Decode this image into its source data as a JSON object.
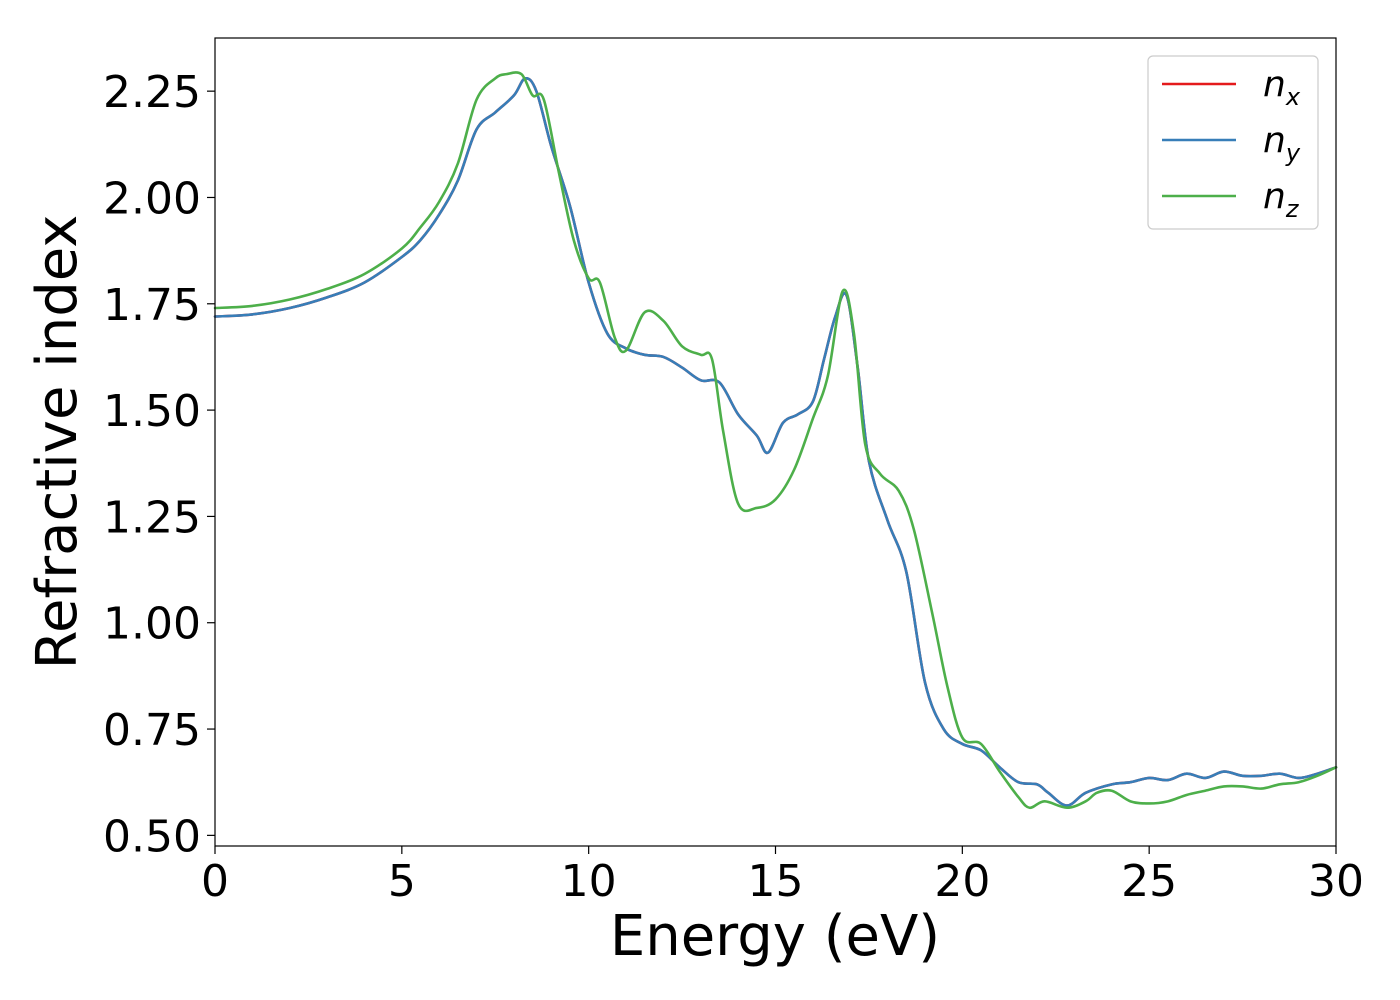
{
  "chart_data": {
    "type": "line",
    "xlabel": "Energy (eV)",
    "ylabel": "Refractive index",
    "xlim": [
      0,
      30
    ],
    "ylim": [
      0.475,
      2.375
    ],
    "xticks": [
      0,
      5,
      10,
      15,
      20,
      25,
      30
    ],
    "xtick_labels": [
      "0",
      "5",
      "10",
      "15",
      "20",
      "25",
      "30"
    ],
    "yticks": [
      0.5,
      0.75,
      1.0,
      1.25,
      1.5,
      1.75,
      2.0,
      2.25
    ],
    "ytick_labels": [
      "0.50",
      "0.75",
      "1.00",
      "1.25",
      "1.50",
      "1.75",
      "2.00",
      "2.25"
    ],
    "grid": false,
    "legend_position": "top-right",
    "series": [
      {
        "name": "n_x",
        "legend_base": "n",
        "legend_sub": "x",
        "color": "#e41a1c",
        "x": [
          0,
          1,
          2,
          3,
          4,
          5,
          5.5,
          6,
          6.5,
          7,
          7.5,
          8,
          8.3,
          8.6,
          9,
          9.5,
          10,
          10.5,
          11,
          11.5,
          12,
          12.5,
          13,
          13.5,
          14,
          14.5,
          14.8,
          15.2,
          15.6,
          16,
          16.3,
          16.6,
          16.9,
          17.2,
          17.5,
          18,
          18.5,
          19,
          19.5,
          20,
          20.5,
          21,
          21.5,
          22,
          22.3,
          22.8,
          23.3,
          24,
          24.5,
          25,
          25.5,
          26,
          26.5,
          27,
          27.5,
          28,
          28.5,
          29,
          29.5,
          30
        ],
        "y": [
          1.72,
          1.725,
          1.74,
          1.765,
          1.8,
          1.86,
          1.9,
          1.96,
          2.04,
          2.16,
          2.2,
          2.24,
          2.28,
          2.25,
          2.12,
          1.98,
          1.8,
          1.68,
          1.645,
          1.63,
          1.625,
          1.6,
          1.57,
          1.565,
          1.49,
          1.44,
          1.4,
          1.47,
          1.49,
          1.52,
          1.62,
          1.72,
          1.77,
          1.6,
          1.38,
          1.24,
          1.12,
          0.86,
          0.75,
          0.715,
          0.7,
          0.66,
          0.625,
          0.62,
          0.6,
          0.57,
          0.6,
          0.62,
          0.625,
          0.635,
          0.63,
          0.645,
          0.635,
          0.65,
          0.64,
          0.64,
          0.645,
          0.635,
          0.645,
          0.66
        ]
      },
      {
        "name": "n_y",
        "legend_base": "n",
        "legend_sub": "y",
        "color": "#377eb8",
        "x": [
          0,
          1,
          2,
          3,
          4,
          5,
          5.5,
          6,
          6.5,
          7,
          7.5,
          8,
          8.3,
          8.6,
          9,
          9.5,
          10,
          10.5,
          11,
          11.5,
          12,
          12.5,
          13,
          13.5,
          14,
          14.5,
          14.8,
          15.2,
          15.6,
          16,
          16.3,
          16.6,
          16.9,
          17.2,
          17.5,
          18,
          18.5,
          19,
          19.5,
          20,
          20.5,
          21,
          21.5,
          22,
          22.3,
          22.8,
          23.3,
          24,
          24.5,
          25,
          25.5,
          26,
          26.5,
          27,
          27.5,
          28,
          28.5,
          29,
          29.5,
          30
        ],
        "y": [
          1.72,
          1.725,
          1.74,
          1.765,
          1.8,
          1.86,
          1.9,
          1.96,
          2.04,
          2.16,
          2.2,
          2.24,
          2.28,
          2.25,
          2.12,
          1.98,
          1.8,
          1.68,
          1.645,
          1.63,
          1.625,
          1.6,
          1.57,
          1.565,
          1.49,
          1.44,
          1.4,
          1.47,
          1.49,
          1.52,
          1.62,
          1.72,
          1.77,
          1.6,
          1.38,
          1.24,
          1.12,
          0.86,
          0.75,
          0.715,
          0.7,
          0.66,
          0.625,
          0.62,
          0.6,
          0.57,
          0.6,
          0.62,
          0.625,
          0.635,
          0.63,
          0.645,
          0.635,
          0.65,
          0.64,
          0.64,
          0.645,
          0.635,
          0.645,
          0.66
        ]
      },
      {
        "name": "n_z",
        "legend_base": "n",
        "legend_sub": "z",
        "color": "#4daf4a",
        "x": [
          0,
          1,
          2,
          3,
          4,
          5,
          5.5,
          6,
          6.5,
          7,
          7.5,
          7.8,
          8.2,
          8.5,
          8.8,
          9.2,
          9.6,
          10,
          10.3,
          10.7,
          11,
          11.5,
          12,
          12.5,
          13,
          13.3,
          13.6,
          14,
          14.5,
          15,
          15.5,
          16,
          16.4,
          16.8,
          17.1,
          17.4,
          17.8,
          18.3,
          18.7,
          19.2,
          19.6,
          20,
          20.5,
          21,
          21.5,
          21.8,
          22.2,
          22.8,
          23.3,
          23.6,
          24,
          24.5,
          25,
          25.5,
          26,
          26.5,
          27,
          27.5,
          28,
          28.5,
          29,
          29.5,
          30
        ],
        "y": [
          1.74,
          1.745,
          1.76,
          1.785,
          1.82,
          1.88,
          1.93,
          1.99,
          2.08,
          2.23,
          2.28,
          2.29,
          2.29,
          2.24,
          2.23,
          2.06,
          1.9,
          1.81,
          1.8,
          1.67,
          1.64,
          1.73,
          1.71,
          1.65,
          1.63,
          1.62,
          1.45,
          1.28,
          1.27,
          1.29,
          1.36,
          1.48,
          1.58,
          1.78,
          1.68,
          1.42,
          1.35,
          1.31,
          1.22,
          1.02,
          0.85,
          0.73,
          0.715,
          0.65,
          0.59,
          0.565,
          0.58,
          0.565,
          0.58,
          0.6,
          0.605,
          0.58,
          0.575,
          0.58,
          0.595,
          0.605,
          0.615,
          0.615,
          0.61,
          0.62,
          0.625,
          0.64,
          0.66
        ]
      }
    ]
  }
}
